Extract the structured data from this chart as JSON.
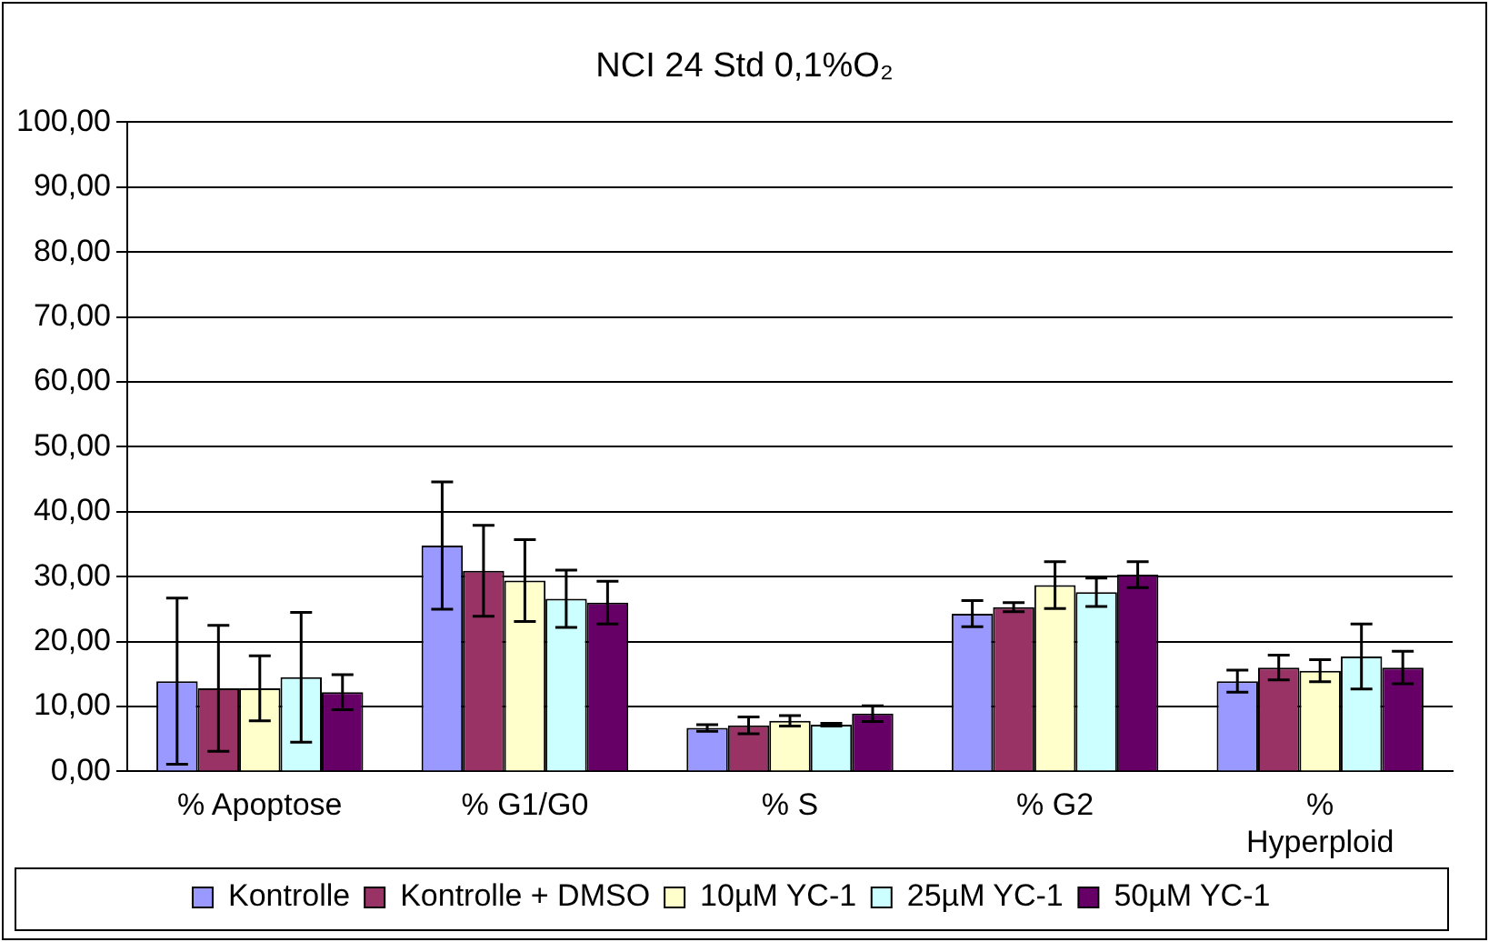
{
  "chart_data": {
    "type": "bar",
    "title": "NCI 24 Std 0,1%O₂",
    "categories": [
      "% Apoptose",
      "% G1/G0",
      "% S",
      "% G2",
      "% Hyperploid"
    ],
    "series": [
      {
        "name": "Kontrolle",
        "color": "#9999ff",
        "values": [
          13.9,
          34.8,
          6.7,
          24.3,
          13.9
        ],
        "errors": [
          12.8,
          9.8,
          0.5,
          2,
          1.7
        ]
      },
      {
        "name": "Kontrolle + DMSO",
        "color": "#993366",
        "values": [
          12.8,
          30.9,
          7.1,
          25.3,
          16.0
        ],
        "errors": [
          9.7,
          7,
          1.3,
          0.7,
          1.9
        ]
      },
      {
        "name": "10µM YC-1",
        "color": "#ffffcc",
        "values": [
          12.8,
          29.4,
          7.8,
          28.7,
          15.5
        ],
        "errors": [
          5,
          6.3,
          0.8,
          3.6,
          1.7
        ]
      },
      {
        "name": "25µM YC-1",
        "color": "#ccffff",
        "values": [
          14.5,
          26.6,
          7.2,
          27.6,
          17.7
        ],
        "errors": [
          10,
          4.4,
          0.2,
          2.2,
          5
        ]
      },
      {
        "name": "50µM YC-1",
        "color": "#660066",
        "values": [
          12.2,
          26.0,
          8.9,
          30.3,
          16.0
        ],
        "errors": [
          2.7,
          3.3,
          1.2,
          2,
          2.5
        ]
      }
    ],
    "ylim": [
      0,
      100
    ],
    "yticks": [
      {
        "value": 0,
        "label": "0,00"
      },
      {
        "value": 10,
        "label": "10,00"
      },
      {
        "value": 20,
        "label": "20,00"
      },
      {
        "value": 30,
        "label": "30,00"
      },
      {
        "value": 40,
        "label": "40,00"
      },
      {
        "value": 50,
        "label": "50,00"
      },
      {
        "value": 60,
        "label": "60,00"
      },
      {
        "value": 70,
        "label": "70,00"
      },
      {
        "value": 80,
        "label": "80,00"
      },
      {
        "value": 90,
        "label": "90,00"
      },
      {
        "value": 100,
        "label": "100,00"
      }
    ],
    "grid": "y",
    "legend": "bottom"
  }
}
